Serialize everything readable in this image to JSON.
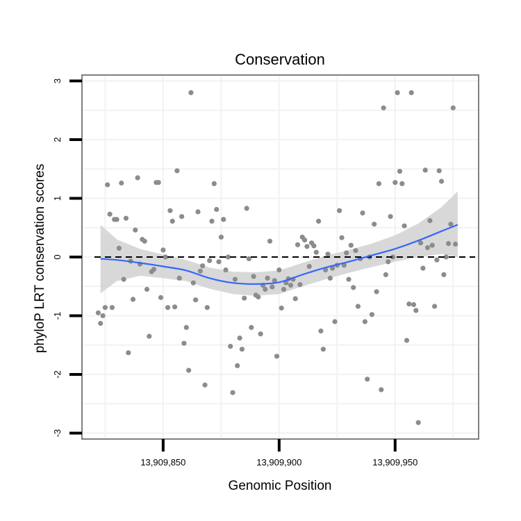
{
  "chart_data": {
    "type": "scatter",
    "title": "Conservation",
    "xlabel": "Genomic Position",
    "ylabel": "phyloP LRT conservation scores",
    "xlim": [
      13909815,
      13909986
    ],
    "ylim": [
      -3.1,
      3.1
    ],
    "x_ticks": [
      {
        "value": 13909850,
        "label": "13,909,850"
      },
      {
        "value": 13909900,
        "label": "13,909,900"
      },
      {
        "value": 13909950,
        "label": "13,909,950"
      }
    ],
    "y_ticks": [
      {
        "value": -3,
        "label": "-3"
      },
      {
        "value": -2,
        "label": "-2"
      },
      {
        "value": -1,
        "label": "-1"
      },
      {
        "value": 0,
        "label": "0"
      },
      {
        "value": 1,
        "label": "1"
      },
      {
        "value": 2,
        "label": "2"
      },
      {
        "value": 3,
        "label": "3"
      }
    ],
    "reference_line": {
      "y": 0,
      "style": "dashed"
    },
    "points": [
      [
        13909822,
        -0.95
      ],
      [
        13909823,
        -1.13
      ],
      [
        13909824,
        -1.0
      ],
      [
        13909825,
        -0.86
      ],
      [
        13909826,
        1.23
      ],
      [
        13909827,
        0.73
      ],
      [
        13909828,
        -0.86
      ],
      [
        13909829,
        0.64
      ],
      [
        13909830,
        0.64
      ],
      [
        13909831,
        0.15
      ],
      [
        13909832,
        1.26
      ],
      [
        13909833,
        -0.38
      ],
      [
        13909834,
        0.66
      ],
      [
        13909835,
        -1.63
      ],
      [
        13909836,
        -0.07
      ],
      [
        13909837,
        -0.72
      ],
      [
        13909838,
        0.46
      ],
      [
        13909839,
        1.35
      ],
      [
        13909840,
        -0.12
      ],
      [
        13909841,
        0.3
      ],
      [
        13909842,
        0.27
      ],
      [
        13909843,
        -0.55
      ],
      [
        13909844,
        -1.35
      ],
      [
        13909845,
        -0.25
      ],
      [
        13909846,
        -0.21
      ],
      [
        13909847,
        1.27
      ],
      [
        13909848,
        1.27
      ],
      [
        13909849,
        -0.69
      ],
      [
        13909850,
        0.12
      ],
      [
        13909851,
        0.0
      ],
      [
        13909852,
        -0.86
      ],
      [
        13909853,
        0.79
      ],
      [
        13909854,
        0.61
      ],
      [
        13909855,
        -0.85
      ],
      [
        13909856,
        1.47
      ],
      [
        13909857,
        -0.36
      ],
      [
        13909858,
        0.69
      ],
      [
        13909859,
        -1.47
      ],
      [
        13909860,
        -1.2
      ],
      [
        13909861,
        -1.93
      ],
      [
        13909862,
        2.8
      ],
      [
        13909863,
        -0.44
      ],
      [
        13909864,
        -0.73
      ],
      [
        13909865,
        0.77
      ],
      [
        13909866,
        -0.24
      ],
      [
        13909867,
        -0.15
      ],
      [
        13909868,
        -2.18
      ],
      [
        13909869,
        -0.86
      ],
      [
        13909870,
        -0.06
      ],
      [
        13909871,
        0.61
      ],
      [
        13909872,
        1.25
      ],
      [
        13909873,
        0.81
      ],
      [
        13909874,
        -0.08
      ],
      [
        13909875,
        0.34
      ],
      [
        13909876,
        0.64
      ],
      [
        13909877,
        -0.22
      ],
      [
        13909878,
        0.0
      ],
      [
        13909879,
        -1.52
      ],
      [
        13909880,
        -2.31
      ],
      [
        13909881,
        -0.38
      ],
      [
        13909882,
        -1.85
      ],
      [
        13909883,
        -1.38
      ],
      [
        13909884,
        -1.57
      ],
      [
        13909885,
        -0.7
      ],
      [
        13909886,
        0.83
      ],
      [
        13909887,
        -0.03
      ],
      [
        13909888,
        -1.2
      ],
      [
        13909889,
        -0.33
      ],
      [
        13909890,
        -0.65
      ],
      [
        13909891,
        -0.68
      ],
      [
        13909892,
        -1.31
      ],
      [
        13909893,
        -0.48
      ],
      [
        13909894,
        -0.55
      ],
      [
        13909895,
        -0.36
      ],
      [
        13909896,
        0.27
      ],
      [
        13909897,
        -0.51
      ],
      [
        13909898,
        -0.4
      ],
      [
        13909899,
        -1.69
      ],
      [
        13909900,
        -0.22
      ],
      [
        13909901,
        -0.87
      ],
      [
        13909902,
        -0.55
      ],
      [
        13909903,
        -0.44
      ],
      [
        13909904,
        -0.37
      ],
      [
        13909905,
        -0.48
      ],
      [
        13909906,
        -0.38
      ],
      [
        13909907,
        -0.71
      ],
      [
        13909908,
        0.21
      ],
      [
        13909909,
        -0.47
      ],
      [
        13909910,
        0.34
      ],
      [
        13909911,
        0.29
      ],
      [
        13909912,
        0.18
      ],
      [
        13909913,
        -0.16
      ],
      [
        13909914,
        0.24
      ],
      [
        13909915,
        0.19
      ],
      [
        13909916,
        0.08
      ],
      [
        13909917,
        0.61
      ],
      [
        13909918,
        -1.26
      ],
      [
        13909919,
        -1.57
      ],
      [
        13909920,
        -0.22
      ],
      [
        13909921,
        0.05
      ],
      [
        13909922,
        -0.36
      ],
      [
        13909923,
        -0.19
      ],
      [
        13909924,
        -1.1
      ],
      [
        13909925,
        -0.14
      ],
      [
        13909926,
        0.79
      ],
      [
        13909927,
        0.33
      ],
      [
        13909928,
        -0.14
      ],
      [
        13909929,
        0.07
      ],
      [
        13909930,
        -0.38
      ],
      [
        13909931,
        0.2
      ],
      [
        13909932,
        -0.52
      ],
      [
        13909933,
        0.11
      ],
      [
        13909934,
        -0.84
      ],
      [
        13909935,
        -0.03
      ],
      [
        13909936,
        0.75
      ],
      [
        13909937,
        -1.1
      ],
      [
        13909938,
        -2.08
      ],
      [
        13909939,
        0.0
      ],
      [
        13909940,
        -0.98
      ],
      [
        13909941,
        0.56
      ],
      [
        13909942,
        -0.59
      ],
      [
        13909943,
        1.25
      ],
      [
        13909944,
        -2.26
      ],
      [
        13909945,
        2.54
      ],
      [
        13909946,
        -0.3
      ],
      [
        13909947,
        -0.08
      ],
      [
        13909948,
        0.69
      ],
      [
        13909949,
        0.0
      ],
      [
        13909950,
        1.27
      ],
      [
        13909951,
        2.8
      ],
      [
        13909952,
        1.46
      ],
      [
        13909953,
        1.25
      ],
      [
        13909954,
        0.53
      ],
      [
        13909955,
        -1.42
      ],
      [
        13909956,
        -0.8
      ],
      [
        13909957,
        2.8
      ],
      [
        13909958,
        -0.81
      ],
      [
        13909959,
        -0.91
      ],
      [
        13909960,
        -2.82
      ],
      [
        13909961,
        0.24
      ],
      [
        13909962,
        -0.19
      ],
      [
        13909963,
        1.48
      ],
      [
        13909964,
        0.16
      ],
      [
        13909965,
        0.62
      ],
      [
        13909966,
        0.2
      ],
      [
        13909967,
        -0.84
      ],
      [
        13909968,
        -0.05
      ],
      [
        13909969,
        1.47
      ],
      [
        13909970,
        1.29
      ],
      [
        13909971,
        -0.3
      ],
      [
        13909972,
        0.0
      ],
      [
        13909973,
        0.23
      ],
      [
        13909974,
        0.56
      ],
      [
        13909975,
        2.54
      ],
      [
        13909976,
        0.22
      ]
    ],
    "smooth": {
      "x": [
        13909823,
        13909830,
        13909840,
        13909850,
        13909860,
        13909870,
        13909880,
        13909890,
        13909900,
        13909910,
        13909920,
        13909930,
        13909940,
        13909950,
        13909960,
        13909970,
        13909977
      ],
      "y": [
        -0.03,
        -0.05,
        -0.1,
        -0.16,
        -0.23,
        -0.36,
        -0.44,
        -0.46,
        -0.43,
        -0.3,
        -0.18,
        -0.08,
        0.03,
        0.14,
        0.28,
        0.44,
        0.55
      ],
      "lower": [
        -0.62,
        -0.41,
        -0.32,
        -0.36,
        -0.41,
        -0.54,
        -0.63,
        -0.66,
        -0.63,
        -0.5,
        -0.38,
        -0.27,
        -0.17,
        -0.08,
        0.0,
        0.05,
        0.0
      ],
      "upper": [
        0.55,
        0.3,
        0.14,
        0.04,
        -0.05,
        -0.18,
        -0.25,
        -0.26,
        -0.23,
        -0.1,
        0.02,
        0.12,
        0.23,
        0.37,
        0.57,
        0.85,
        1.12
      ]
    },
    "colors": {
      "points": "#8c8c8c",
      "smooth_line": "#3366ff",
      "ribbon": "#d4d4d4",
      "panel_border": "#7f7f7f",
      "grid": "#f2f2f2"
    }
  }
}
